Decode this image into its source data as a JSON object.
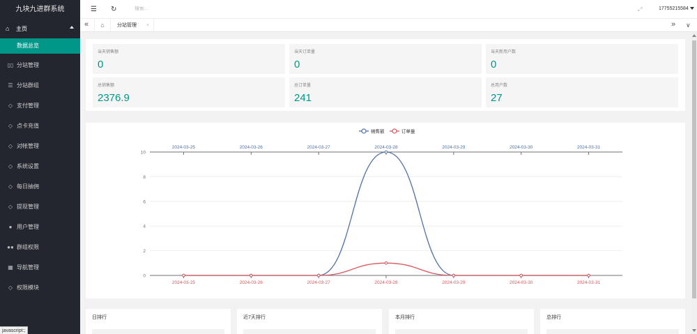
{
  "sidebar": {
    "brand": "九块九进群系统",
    "home": {
      "label": "主页",
      "icon": "home-icon"
    },
    "sub_active": "数据总览",
    "items": [
      {
        "label": "分站管理",
        "icon": "columns-icon",
        "glyph": "▯▯"
      },
      {
        "label": "分站群组",
        "icon": "sliders-icon",
        "glyph": "☰"
      },
      {
        "label": "支付管理",
        "icon": "shield-icon",
        "glyph": "◇"
      },
      {
        "label": "点卡充值",
        "icon": "shield-icon",
        "glyph": "◇"
      },
      {
        "label": "对帐管理",
        "icon": "shield-icon",
        "glyph": "◇"
      },
      {
        "label": "系统设置",
        "icon": "shield-icon",
        "glyph": "◇"
      },
      {
        "label": "每日抽佣",
        "icon": "shield-icon",
        "glyph": "◇"
      },
      {
        "label": "提现管理",
        "icon": "shield-icon",
        "glyph": "◇"
      },
      {
        "label": "用户管理",
        "icon": "user-icon",
        "glyph": "●"
      },
      {
        "label": "群组权限",
        "icon": "users-icon",
        "glyph": "●●"
      },
      {
        "label": "导航管理",
        "icon": "nav-icon",
        "glyph": "▦"
      },
      {
        "label": "权限模块",
        "icon": "shield-icon",
        "glyph": "◇"
      }
    ],
    "status_hint": "javascript:;"
  },
  "topbar": {
    "menu_icon": "menu-fold-icon",
    "refresh_icon": "refresh-icon",
    "search_placeholder": "搜索...",
    "fullscreen_icon": "fullscreen-icon",
    "username": "17755215584"
  },
  "tabs": {
    "home_icon": "home-icon",
    "active_label": "分站管理",
    "close_glyph": "×"
  },
  "stats": [
    {
      "label": "当天销售额",
      "value": "0"
    },
    {
      "label": "当天订单量",
      "value": "0"
    },
    {
      "label": "当天新用户数",
      "value": "0"
    },
    {
      "label": "总销售额",
      "value": "2376.9"
    },
    {
      "label": "总订单量",
      "value": "241"
    },
    {
      "label": "总用户数",
      "value": "27"
    }
  ],
  "chart_data": {
    "type": "line",
    "legend": [
      "销售额",
      "订单量"
    ],
    "legend_position": "top-center",
    "x": [
      "2024-03-25",
      "2024-03-26",
      "2024-03-27",
      "2024-03-28",
      "2024-03-29",
      "2024-03-30",
      "2024-03-31"
    ],
    "series": [
      {
        "name": "销售额",
        "color": "#4e6fa6",
        "values": [
          0,
          0,
          0,
          10,
          0,
          0,
          0
        ]
      },
      {
        "name": "订单量",
        "color": "#d8565b",
        "values": [
          0,
          0,
          0,
          1,
          0,
          0,
          0
        ]
      }
    ],
    "y_ticks": [
      0,
      2,
      4,
      6,
      8,
      10
    ],
    "ylim": [
      0,
      10
    ],
    "smooth": true
  },
  "rankings": [
    "日排行",
    "近7天排行",
    "本月排行",
    "总排行"
  ]
}
